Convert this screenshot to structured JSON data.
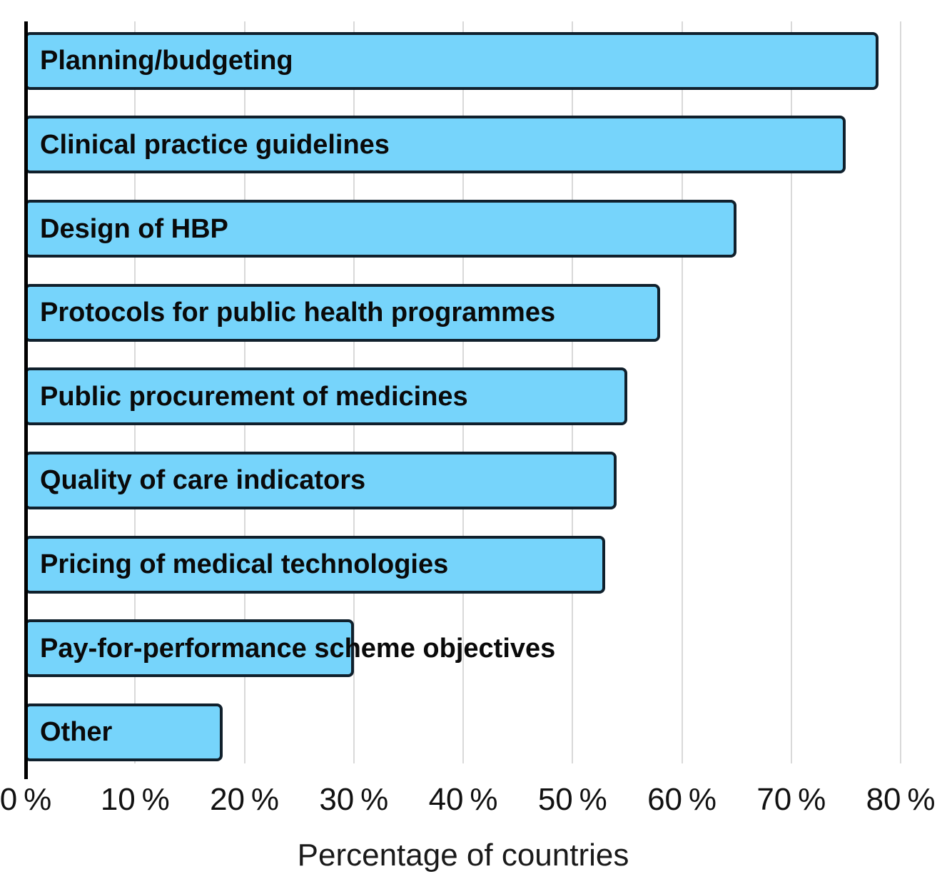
{
  "chart_data": {
    "type": "bar",
    "orientation": "horizontal",
    "title": "",
    "xlabel": "Percentage of countries",
    "ylabel": "",
    "xlim": [
      0,
      80
    ],
    "x_ticks": [
      0,
      10,
      20,
      30,
      40,
      50,
      60,
      70,
      80
    ],
    "x_tick_labels": [
      "0 %",
      "10 %",
      "20 %",
      "30 %",
      "40 %",
      "50 %",
      "60 %",
      "70 %",
      "80 %"
    ],
    "grid": "vertical",
    "legend": "none",
    "categories": [
      "Planning/budgeting",
      "Clinical practice guidelines",
      "Design of HBP",
      "Protocols for public health programmes",
      "Public procurement of medicines",
      "Quality of care indicators",
      "Pricing of medical technologies",
      "Pay-for-performance scheme objectives",
      "Other"
    ],
    "values": [
      78,
      75,
      65,
      58,
      55,
      54,
      53,
      30,
      18
    ],
    "unit": "percent of countries",
    "colors": {
      "bar_fill": "#76D4FB",
      "bar_border": "#10202C",
      "gridline": "#D9D9D9",
      "axis": "#000000",
      "label_text": "#0A0A0A",
      "tick_text": "#111111"
    }
  }
}
